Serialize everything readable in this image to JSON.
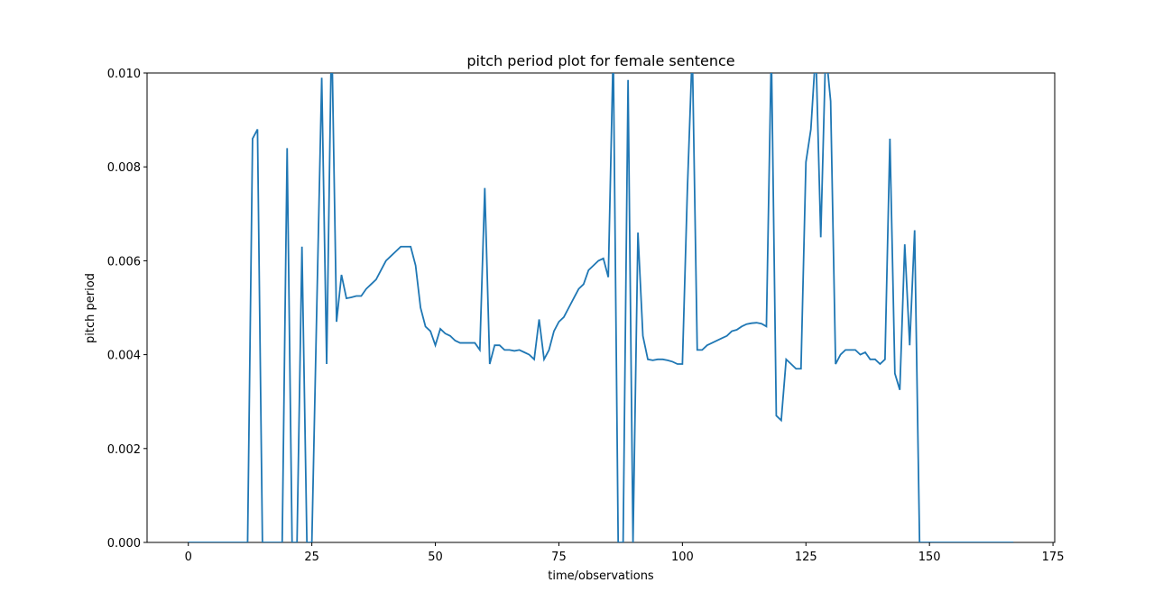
{
  "chart_data": {
    "type": "line",
    "title": "pitch period plot for female sentence",
    "x_label": "time/observations",
    "y_label": "pitch period",
    "color": "#1f77b4",
    "x": [
      0,
      1,
      2,
      3,
      4,
      5,
      6,
      7,
      8,
      9,
      10,
      11,
      12,
      13,
      14,
      15,
      16,
      17,
      18,
      19,
      20,
      21,
      22,
      23,
      24,
      25,
      26,
      27,
      28,
      29,
      30,
      31,
      32,
      33,
      34,
      35,
      36,
      37,
      38,
      39,
      40,
      41,
      42,
      43,
      44,
      45,
      46,
      47,
      48,
      49,
      50,
      51,
      52,
      53,
      54,
      55,
      56,
      57,
      58,
      59,
      60,
      61,
      62,
      63,
      64,
      65,
      66,
      67,
      68,
      69,
      70,
      71,
      72,
      73,
      74,
      75,
      76,
      77,
      78,
      79,
      80,
      81,
      82,
      83,
      84,
      85,
      86,
      87,
      88,
      89,
      90,
      91,
      92,
      93,
      94,
      95,
      96,
      97,
      98,
      99,
      100,
      101,
      102,
      103,
      104,
      105,
      106,
      107,
      108,
      109,
      110,
      111,
      112,
      113,
      114,
      115,
      116,
      117,
      118,
      119,
      120,
      121,
      122,
      123,
      124,
      125,
      126,
      127,
      128,
      129,
      130,
      131,
      132,
      133,
      134,
      135,
      136,
      137,
      138,
      139,
      140,
      141,
      142,
      143,
      144,
      145,
      146,
      147,
      148,
      149,
      150,
      151,
      152,
      153,
      154,
      155,
      156,
      157,
      158,
      159,
      160,
      161,
      162,
      163,
      164,
      165,
      166,
      167
    ],
    "values": [
      0,
      0,
      0,
      0,
      0,
      0,
      0,
      0,
      0,
      0,
      0,
      0,
      0,
      0.0086,
      0.0088,
      0,
      0,
      0,
      0,
      0,
      0.0084,
      0,
      0,
      0.0063,
      0,
      0,
      0.005,
      0.0099,
      0.0038,
      0.011,
      0.0047,
      0.0057,
      0.0052,
      0.00522,
      0.00525,
      0.00525,
      0.0054,
      0.0055,
      0.0056,
      0.0058,
      0.006,
      0.0061,
      0.0062,
      0.0063,
      0.0063,
      0.0063,
      0.0059,
      0.005,
      0.0046,
      0.0045,
      0.0042,
      0.00455,
      0.00445,
      0.0044,
      0.0043,
      0.00425,
      0.00425,
      0.00425,
      0.00425,
      0.0041,
      0.00755,
      0.0038,
      0.0042,
      0.0042,
      0.0041,
      0.0041,
      0.00408,
      0.0041,
      0.00405,
      0.004,
      0.0039,
      0.00475,
      0.0039,
      0.0041,
      0.0045,
      0.0047,
      0.0048,
      0.005,
      0.0052,
      0.0054,
      0.0055,
      0.0058,
      0.0059,
      0.006,
      0.00605,
      0.00565,
      0.0105,
      0,
      0,
      0.00985,
      0,
      0.0066,
      0.0044,
      0.0039,
      0.00388,
      0.0039,
      0.0039,
      0.00388,
      0.00385,
      0.0038,
      0.0038,
      0.0075,
      0.0105,
      0.0041,
      0.0041,
      0.0042,
      0.00425,
      0.0043,
      0.00435,
      0.0044,
      0.0045,
      0.00453,
      0.0046,
      0.00465,
      0.00467,
      0.00468,
      0.00466,
      0.0046,
      0.0105,
      0.0027,
      0.0026,
      0.0039,
      0.0038,
      0.0037,
      0.0037,
      0.0081,
      0.0088,
      0.0105,
      0.0065,
      0.0105,
      0.0094,
      0.0038,
      0.004,
      0.0041,
      0.0041,
      0.0041,
      0.004,
      0.00405,
      0.0039,
      0.0039,
      0.0038,
      0.0039,
      0.0086,
      0.0036,
      0.00325,
      0.00635,
      0.0042,
      0.00665,
      0,
      0,
      0,
      0,
      0,
      0,
      0,
      0,
      0,
      0,
      0,
      0,
      0,
      0,
      0,
      0,
      0,
      0,
      0,
      0
    ],
    "xlim": [
      -8.35,
      175.35
    ],
    "xticks": [
      0,
      25,
      50,
      75,
      100,
      125,
      150,
      175
    ],
    "ylim": [
      0,
      0.01
    ],
    "yticks": [
      {
        "value": 0,
        "label": "0.000"
      },
      {
        "value": 0.002,
        "label": "0.002"
      },
      {
        "value": 0.004,
        "label": "0.004"
      },
      {
        "value": 0.006,
        "label": "0.006"
      },
      {
        "value": 0.008,
        "label": "0.008"
      },
      {
        "value": 0.01,
        "label": "0.010"
      }
    ]
  }
}
